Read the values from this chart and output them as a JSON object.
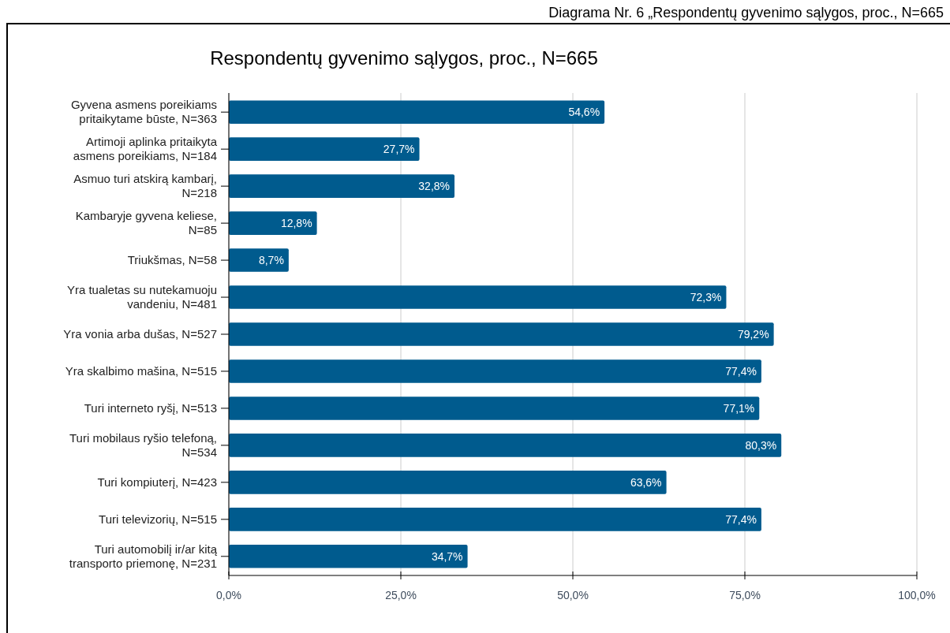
{
  "chart_data": {
    "type": "bar",
    "orientation": "horizontal",
    "title": "Respondentų gyvenimo sąlygos, proc., N=665",
    "annotations": [
      "Diagrama Nr. 6 „Respondentų gyvenimo sąlygos, proc., N=665"
    ],
    "categories": [
      "Gyvena asmens poreikiams\npritaikytame būste, N=363",
      "Artimoji aplinka pritaikyta\nasmens poreikiams,  N=184",
      "Asmuo turi atskirą kambarį,\nN=218",
      "Kambaryje gyvena keliese,\nN=85",
      "Triukšmas, N=58",
      "Yra tualetas su nutekamuoju\nvandeniu, N=481",
      "Yra vonia arba dušas, N=527",
      "Yra skalbimo mašina, N=515",
      "Turi interneto ryšį, N=513",
      "Turi mobilaus ryšio telefoną,\nN=534",
      "Turi kompiuterį, N=423",
      "Turi televizorių, N=515",
      "Turi automobilį ir/ar kitą\ntransporto priemonę, N=231"
    ],
    "values": [
      54.6,
      27.7,
      32.8,
      12.8,
      8.7,
      72.3,
      79.2,
      77.4,
      77.1,
      80.3,
      63.6,
      77.4,
      34.7
    ],
    "color": "#005b8e",
    "value_labels": [
      "54,6%",
      "27,7%",
      "32,8%",
      "12,8%",
      "8,7%",
      "72,3%",
      "79,2%",
      "77,4%",
      "77,1%",
      "80,3%",
      "63,6%",
      "77,4%",
      "34,7%"
    ],
    "xlim": [
      0,
      100
    ],
    "xticks": [
      {
        "value": 0,
        "label": "0,0%"
      },
      {
        "value": 25,
        "label": "25,0%"
      },
      {
        "value": 50,
        "label": "50,0%"
      },
      {
        "value": 75,
        "label": "75,0%"
      },
      {
        "value": 100,
        "label": "100,0%"
      }
    ],
    "grid": "x"
  }
}
